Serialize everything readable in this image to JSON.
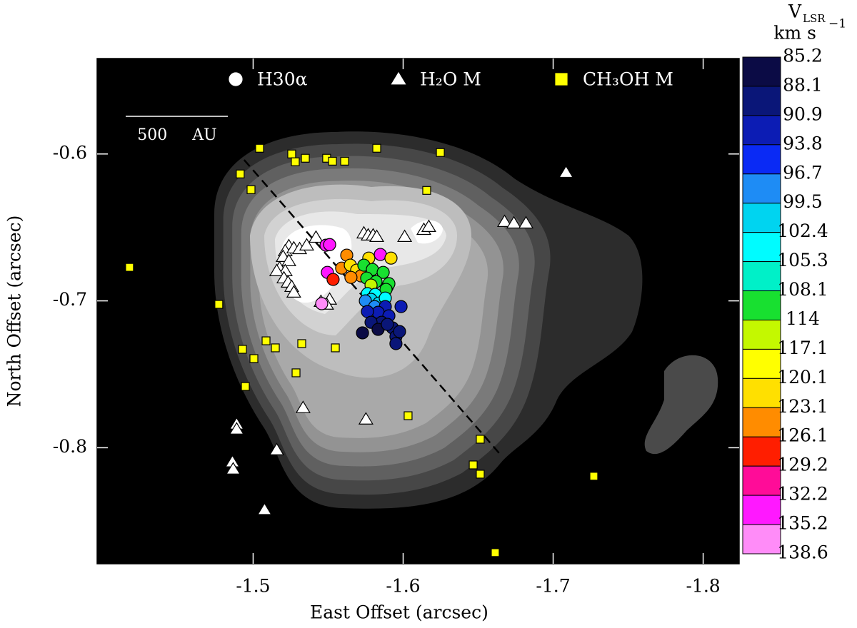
{
  "chart_data": {
    "type": "scatter",
    "xlabel": "East Offset (arcsec)",
    "ylabel": "North Offset (arcsec)",
    "xlim": [
      -1.396,
      -1.824
    ],
    "ylim": [
      -0.879,
      -0.535
    ],
    "xticks": [
      -1.5,
      -1.6,
      -1.7,
      -1.8
    ],
    "yticks": [
      -0.8,
      -0.7,
      -0.6
    ],
    "series": [
      {
        "name": "H30α",
        "marker": "circle",
        "color": "#ffffff",
        "x": [
          -1.5486,
          -1.551,
          -1.5495,
          -1.5533,
          -1.5624,
          -1.559,
          -1.5648,
          -1.569,
          -1.5719,
          -1.5652,
          -1.5771,
          -1.5848,
          -1.5919,
          -1.5738,
          -1.5795,
          -1.5867,
          -1.5757,
          -1.5819,
          -1.5895,
          -1.5905,
          -1.5886,
          -1.5786,
          -1.5762,
          -1.5814,
          -1.5786,
          -1.5838,
          -1.5881,
          -1.5748,
          -1.581,
          -1.5881,
          -1.5833,
          -1.5762,
          -1.5986,
          -1.5905,
          -1.5857,
          -1.5786,
          -1.5929,
          -1.5833,
          -1.5952,
          -1.5729,
          -1.5895,
          -1.5976,
          -1.5952,
          -1.5457
        ],
        "y": [
          -0.6621,
          -0.6617,
          -0.6806,
          -0.6854,
          -0.6689,
          -0.6777,
          -0.6757,
          -0.6791,
          -0.683,
          -0.684,
          -0.6709,
          -0.6684,
          -0.6709,
          -0.6757,
          -0.6786,
          -0.6806,
          -0.6845,
          -0.6869,
          -0.6903,
          -0.6883,
          -0.6922,
          -0.6893,
          -0.6951,
          -0.6956,
          -0.699,
          -0.7015,
          -0.6981,
          -0.7,
          -0.7039,
          -0.7039,
          -0.7078,
          -0.7073,
          -0.7039,
          -0.7102,
          -0.7146,
          -0.7146,
          -0.7184,
          -0.7194,
          -0.7243,
          -0.7218,
          -0.716,
          -0.7209,
          -0.7291,
          -0.7019
        ],
        "velocity": [
          134,
          134,
          133,
          129,
          126,
          126,
          121,
          121,
          124,
          124,
          121,
          134,
          121,
          112,
          112,
          112,
          112,
          112,
          112,
          112,
          112,
          116,
          104,
          104,
          101,
          101,
          104,
          98,
          98,
          92,
          92,
          92,
          92,
          92,
          89,
          89,
          89,
          86,
          89,
          86,
          89,
          89,
          89,
          136
        ]
      },
      {
        "name": "H₂O M",
        "marker": "triangle",
        "color": "#ffffff",
        "x": [
          -1.5419,
          -1.5238,
          -1.5214,
          -1.5271,
          -1.52,
          -1.5238,
          -1.5176,
          -1.5214,
          -1.5157,
          -1.5205,
          -1.5233,
          -1.5257,
          -1.5271,
          -1.531,
          -1.5357,
          -1.5452,
          -1.551,
          -1.549,
          -1.5738,
          -1.5767,
          -1.58,
          -1.5824,
          -1.601,
          -1.6138,
          -1.6171,
          -1.6676,
          -1.6738,
          -1.6819,
          -1.7086,
          -1.489,
          -1.489,
          -1.4862,
          -1.4867,
          -1.5157,
          -1.5333,
          -1.5752,
          -1.5076
        ],
        "y": [
          -0.6568,
          -0.6626,
          -0.666,
          -0.6641,
          -0.6699,
          -0.6728,
          -0.6777,
          -0.6796,
          -0.6796,
          -0.6845,
          -0.6874,
          -0.6903,
          -0.6942,
          -0.6646,
          -0.6621,
          -0.7005,
          -0.699,
          -0.7024,
          -0.6539,
          -0.6553,
          -0.6553,
          -0.6563,
          -0.6563,
          -0.6515,
          -0.6495,
          -0.6461,
          -0.6471,
          -0.6471,
          -0.6126,
          -0.784,
          -0.7874,
          -0.8097,
          -0.8146,
          -0.8015,
          -0.7728,
          -0.7806,
          -0.8422
        ]
      },
      {
        "name": "CH₃OH M",
        "marker": "square",
        "color": "#ffff00",
        "x": [
          -1.4176,
          -1.4771,
          -1.4914,
          -1.4986,
          -1.5043,
          -1.5257,
          -1.5281,
          -1.5348,
          -1.549,
          -1.5529,
          -1.561,
          -1.5824,
          -1.6248,
          -1.6157,
          -1.4929,
          -1.4948,
          -1.5005,
          -1.5086,
          -1.5148,
          -1.5324,
          -1.5286,
          -1.5548,
          -1.6033,
          -1.6514,
          -1.6467,
          -1.6514,
          -1.7271,
          -1.6614
        ],
        "y": [
          -0.6772,
          -0.7024,
          -0.6136,
          -0.6243,
          -0.5961,
          -0.6,
          -0.6053,
          -0.6029,
          -0.6029,
          -0.6049,
          -0.6049,
          -0.5961,
          -0.599,
          -0.6248,
          -0.733,
          -0.7583,
          -0.7393,
          -0.7272,
          -0.732,
          -0.7291,
          -0.749,
          -0.732,
          -0.7782,
          -0.7942,
          -0.8117,
          -0.818,
          -0.8194,
          -0.8714
        ]
      }
    ],
    "colorbar": {
      "title": "V",
      "title_sub": "LSR",
      "unit": "km s",
      "unit_sup": "−1",
      "bounds": [
        85.2,
        88.1,
        90.9,
        93.8,
        96.7,
        99.5,
        102.4,
        105.3,
        108.1,
        114,
        117.1,
        120.1,
        123.1,
        126.1,
        129.2,
        132.2,
        135.2,
        138.6
      ],
      "colors": [
        "#0b0b45",
        "#0a1678",
        "#0c1cb4",
        "#0a2af5",
        "#1e8cf5",
        "#00d4f0",
        "#00fcff",
        "#00f0c8",
        "#18e030",
        "#c4f800",
        "#ffff00",
        "#ffe000",
        "#ff8c00",
        "#ff1e00",
        "#ff0c98",
        "#ff18ff",
        "#ff8cf8"
      ]
    },
    "scale_bar_label": "500 AU",
    "dashed_line": {
      "x": [
        -1.494,
        -1.666
      ],
      "y": [
        -0.604,
        -0.806
      ]
    },
    "background_color": "#000000"
  }
}
